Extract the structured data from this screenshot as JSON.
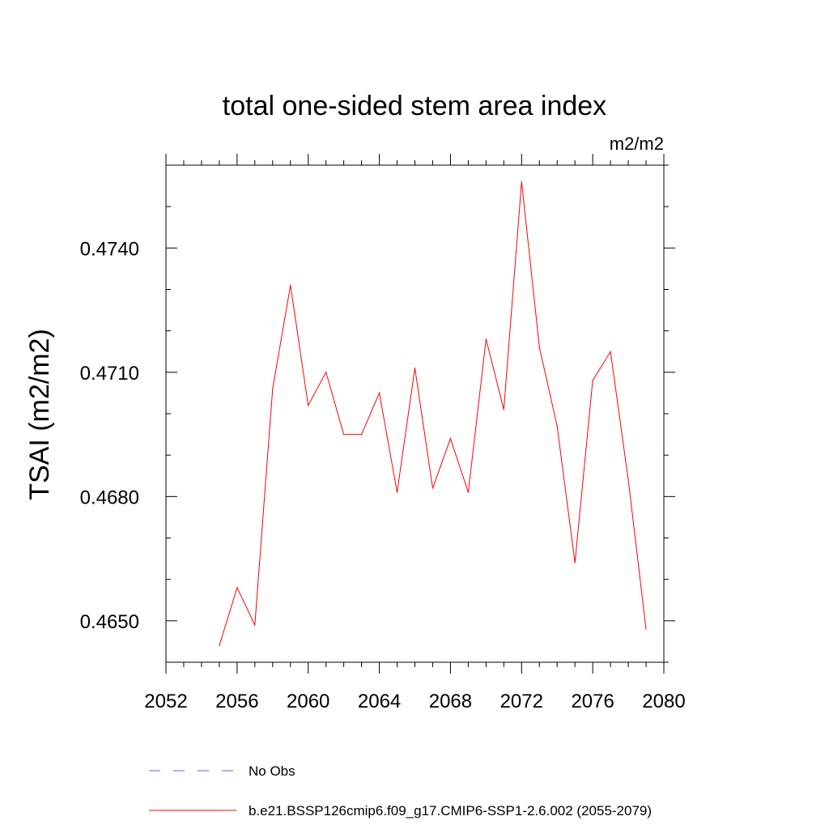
{
  "chart_data": {
    "type": "line",
    "title": "total one-sided stem area index",
    "units": "m2/m2",
    "xlabel": "",
    "ylabel": "TSAI  (m2/m2)",
    "xlim": [
      2052,
      2080
    ],
    "ylim": [
      0.464,
      0.476
    ],
    "xticks": [
      2052,
      2056,
      2060,
      2064,
      2068,
      2072,
      2076,
      2080
    ],
    "xtick_labels": [
      "2052",
      "2056",
      "2060",
      "2064",
      "2068",
      "2072",
      "2076",
      "2080"
    ],
    "yticks": [
      0.465,
      0.468,
      0.471,
      0.474
    ],
    "ytick_labels": [
      "0.4650",
      "0.4680",
      "0.4710",
      "0.4740"
    ],
    "series": [
      {
        "name": "b.e21.BSSP126cmip6.f09_g17.CMIP6-SSP1-2.6.002 (2055-2079)",
        "color": "#ff0000",
        "x": [
          2055,
          2056,
          2057,
          2058,
          2059,
          2060,
          2061,
          2062,
          2063,
          2064,
          2065,
          2066,
          2067,
          2068,
          2069,
          2070,
          2071,
          2072,
          2073,
          2074,
          2075,
          2076,
          2077,
          2078,
          2079
        ],
        "y": [
          0.4644,
          0.4658,
          0.4649,
          0.4706,
          0.4731,
          0.4702,
          0.471,
          0.4695,
          0.4695,
          0.4705,
          0.4681,
          0.4711,
          0.4682,
          0.4694,
          0.4681,
          0.4718,
          0.4701,
          0.4756,
          0.4716,
          0.4697,
          0.4664,
          0.4708,
          0.4715,
          0.4684,
          0.4648
        ]
      }
    ],
    "legend": [
      {
        "label": "No Obs",
        "style": "dashed",
        "color": "#6a5acd"
      },
      {
        "label": "b.e21.BSSP126cmip6.f09_g17.CMIP6-SSP1-2.6.002 (2055-2079)",
        "style": "solid",
        "color": "#ff0000"
      }
    ],
    "legend_position": "bottom"
  }
}
